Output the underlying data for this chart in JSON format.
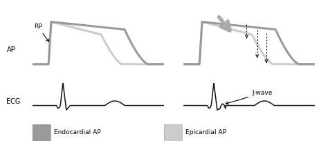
{
  "background_color": "#ffffff",
  "endocardial_color": "#999999",
  "epicardial_color": "#cccccc",
  "ecg_color": "#111111",
  "arrow_color": "#aaaaaa",
  "label_AP": "AP",
  "label_ECG": "ECG",
  "label_RP": "RP",
  "label_Jwave": "J-wave",
  "legend_endo": "Endocardial AP",
  "legend_epi": "Epicardial AP"
}
